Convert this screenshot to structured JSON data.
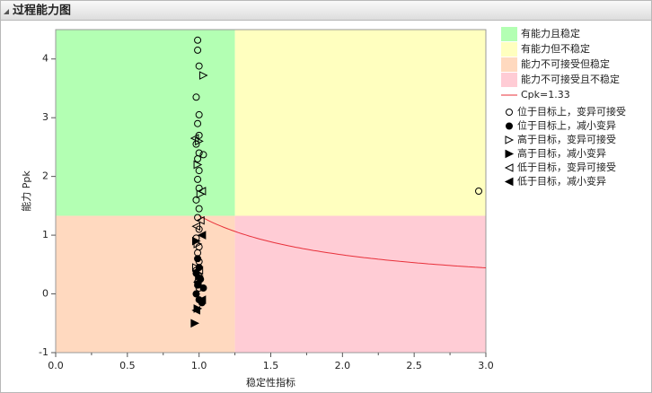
{
  "header": {
    "title": "过程能力图"
  },
  "chart_data": {
    "type": "scatter",
    "xlabel": "稳定性指标",
    "ylabel": "能力 Ppk",
    "xlim": [
      0,
      3
    ],
    "ylim": [
      -1,
      4.5
    ],
    "xticks": [
      {
        "value": 0,
        "label": "0.0"
      },
      0.5,
      {
        "value": 1,
        "label": "1.0"
      },
      1.5,
      {
        "value": 2,
        "label": "2.0"
      },
      2.5,
      {
        "value": 3,
        "label": "3.0"
      }
    ],
    "yticks": [
      -1,
      0,
      1,
      2,
      3,
      4
    ],
    "region_x_split": 1.25,
    "regions": [
      {
        "name": "有能力且稳定",
        "color": "#b3ffb3"
      },
      {
        "name": "有能力但不稳定",
        "color": "#ffffbf"
      },
      {
        "name": "能力不可接受但稳定",
        "color": "#ffd9bf"
      },
      {
        "name": "能力不可接受且不稳定",
        "color": "#ffccd5"
      }
    ],
    "reference": {
      "name": "Cpk=1.33",
      "value": 1.33,
      "color": "#e8303a"
    },
    "series": [
      {
        "name": "位于目标上，变异可接受",
        "marker": "circle-open",
        "color": "#000000",
        "x": [
          0.99,
          0.99,
          1.0,
          0.98,
          1.0,
          0.99,
          1.0,
          0.98,
          1.0,
          0.99,
          1.0,
          0.99,
          1.0,
          0.98,
          1.0,
          0.99,
          1.0,
          0.98,
          1.0,
          0.99,
          1.0,
          0.98,
          1.0,
          0.99,
          1.0,
          2.95,
          1.03
        ],
        "values": [
          4.32,
          4.15,
          3.88,
          3.35,
          3.05,
          2.9,
          2.7,
          2.55,
          2.4,
          2.3,
          2.1,
          1.95,
          1.8,
          1.6,
          1.45,
          1.3,
          1.1,
          0.95,
          0.8,
          0.7,
          0.55,
          0.4,
          0.3,
          0.2,
          0.1,
          1.75,
          2.37
        ]
      },
      {
        "name": "位于目标上，减小变异",
        "marker": "circle-filled",
        "color": "#000000",
        "x": [
          0.99,
          1.0,
          0.98,
          1.01,
          0.99,
          1.03,
          0.98,
          1.0,
          1.02
        ],
        "values": [
          0.6,
          0.45,
          0.35,
          0.25,
          0.15,
          0.1,
          0.0,
          -0.1,
          -0.15
        ]
      },
      {
        "name": "高于目标，变异可接受",
        "marker": "tri-right-open",
        "color": "#000000",
        "x": [
          1.03,
          1.0,
          0.99,
          1.01,
          0.99,
          0.98
        ],
        "values": [
          3.72,
          2.6,
          2.2,
          1.7,
          0.85,
          0.45
        ]
      },
      {
        "name": "高于目标，减小变异",
        "marker": "tri-right-filled",
        "color": "#000000",
        "x": [
          0.97,
          0.99,
          1.0,
          0.98
        ],
        "values": [
          -0.5,
          -0.25,
          0.3,
          0.9
        ]
      },
      {
        "name": "低于目标，变异可接受",
        "marker": "tri-left-open",
        "color": "#000000",
        "x": [
          1.02,
          0.98,
          1.0,
          0.97,
          1.01
        ],
        "values": [
          1.75,
          1.15,
          0.4,
          2.65,
          1.25
        ]
      },
      {
        "name": "低于目标，减小变异",
        "marker": "tri-left-filled",
        "color": "#000000",
        "x": [
          0.98,
          1.02,
          0.99,
          1.02
        ],
        "values": [
          -0.28,
          -0.1,
          0.2,
          1.0
        ]
      }
    ]
  }
}
